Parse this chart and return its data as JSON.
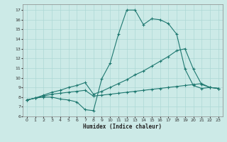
{
  "xlabel": "Humidex (Indice chaleur)",
  "background_color": "#cceae7",
  "line_color": "#1e7870",
  "grid_color": "#add8d5",
  "xlim": [
    -0.5,
    23.5
  ],
  "ylim": [
    6.0,
    17.6
  ],
  "xticks": [
    0,
    1,
    2,
    3,
    4,
    5,
    6,
    7,
    8,
    9,
    10,
    11,
    12,
    13,
    14,
    15,
    16,
    17,
    18,
    19,
    20,
    21,
    22,
    23
  ],
  "yticks": [
    6,
    7,
    8,
    9,
    10,
    11,
    12,
    13,
    14,
    15,
    16,
    17
  ],
  "series1_x": [
    0,
    1,
    2,
    3,
    4,
    5,
    6,
    7,
    8,
    9,
    10,
    11,
    12,
    13,
    14,
    15,
    16,
    17,
    18,
    19,
    20,
    21,
    22,
    23
  ],
  "series1_y": [
    7.7,
    7.9,
    8.0,
    8.0,
    7.8,
    7.7,
    7.5,
    6.7,
    6.6,
    9.9,
    11.5,
    14.5,
    17.0,
    17.0,
    15.5,
    16.1,
    16.0,
    15.6,
    14.5,
    10.9,
    9.2,
    8.9,
    9.0,
    8.9
  ],
  "series2_x": [
    0,
    1,
    2,
    3,
    4,
    5,
    6,
    7,
    8,
    9,
    10,
    11,
    12,
    13,
    14,
    15,
    16,
    17,
    18,
    19,
    20,
    21,
    22,
    23
  ],
  "series2_y": [
    7.7,
    7.9,
    8.1,
    8.3,
    8.4,
    8.5,
    8.6,
    8.7,
    8.1,
    8.2,
    8.3,
    8.4,
    8.5,
    8.6,
    8.7,
    8.8,
    8.9,
    9.0,
    9.1,
    9.2,
    9.3,
    9.4,
    9.0,
    8.9
  ],
  "series3_x": [
    0,
    1,
    2,
    3,
    4,
    5,
    6,
    7,
    8,
    9,
    10,
    11,
    12,
    13,
    14,
    15,
    16,
    17,
    18,
    19,
    20,
    21,
    22,
    23
  ],
  "series3_y": [
    7.7,
    7.9,
    8.2,
    8.5,
    8.7,
    9.0,
    9.2,
    9.5,
    8.3,
    8.6,
    9.0,
    9.4,
    9.8,
    10.3,
    10.7,
    11.2,
    11.7,
    12.2,
    12.8,
    13.0,
    10.9,
    9.3,
    9.0,
    8.9
  ]
}
